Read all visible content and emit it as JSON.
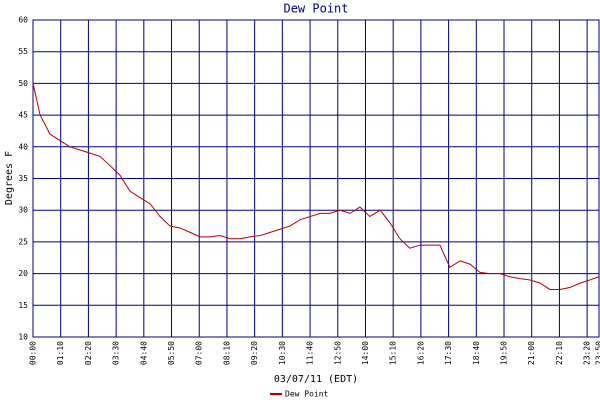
{
  "chart_data": {
    "type": "line",
    "title": "Dew Point",
    "x_label": "03/07/11 (EDT)",
    "y_label": "Degrees F",
    "xlim": [
      0,
      1430
    ],
    "ylim": [
      10,
      60
    ],
    "yticks": [
      10,
      15,
      20,
      25,
      30,
      35,
      40,
      45,
      50,
      55,
      60
    ],
    "xticks": [
      {
        "value": 0,
        "label": "00:00"
      },
      {
        "value": 70,
        "label": "01:10"
      },
      {
        "value": 140,
        "label": "02:20"
      },
      {
        "value": 210,
        "label": "03:30"
      },
      {
        "value": 280,
        "label": "04:40"
      },
      {
        "value": 350,
        "label": "05:50"
      },
      {
        "value": 420,
        "label": "07:00"
      },
      {
        "value": 490,
        "label": "08:10"
      },
      {
        "value": 560,
        "label": "09:20"
      },
      {
        "value": 630,
        "label": "10:30"
      },
      {
        "value": 700,
        "label": "11:40"
      },
      {
        "value": 770,
        "label": "12:50"
      },
      {
        "value": 840,
        "label": "14:00"
      },
      {
        "value": 910,
        "label": "15:10"
      },
      {
        "value": 980,
        "label": "16:20"
      },
      {
        "value": 1050,
        "label": "17:30"
      },
      {
        "value": 1120,
        "label": "18:40"
      },
      {
        "value": 1190,
        "label": "19:50"
      },
      {
        "value": 1260,
        "label": "21:00"
      },
      {
        "value": 1330,
        "label": "22:10"
      },
      {
        "value": 1400,
        "label": "23:20"
      },
      {
        "value": 1430,
        "label": "23:50"
      }
    ],
    "grid": true,
    "legend": "bottom",
    "series": [
      {
        "name": "Dew Point",
        "color": "#b00000",
        "x": [
          0,
          18,
          43,
          68,
          93,
          119,
          144,
          169,
          195,
          220,
          245,
          270,
          296,
          321,
          346,
          371,
          397,
          422,
          447,
          472,
          498,
          523,
          548,
          574,
          599,
          624,
          649,
          675,
          700,
          725,
          750,
          776,
          801,
          826,
          851,
          877,
          902,
          927,
          952,
          978,
          1003,
          1028,
          1053,
          1079,
          1104,
          1129,
          1154,
          1180,
          1205,
          1230,
          1255,
          1281,
          1306,
          1331,
          1356,
          1382,
          1407,
          1430
        ],
        "values": [
          50,
          45,
          42,
          41,
          40,
          39.5,
          39,
          38.5,
          37,
          35.5,
          33,
          32,
          31,
          29,
          27.5,
          27.2,
          26.5,
          25.8,
          25.8,
          26,
          25.5,
          25.5,
          25.8,
          26,
          26.5,
          27,
          27.5,
          28.5,
          29,
          29.5,
          29.5,
          30,
          29.5,
          30.5,
          29,
          30,
          28,
          25.5,
          24,
          24.5,
          24.5,
          24.5,
          21,
          22,
          21.5,
          20.2,
          20,
          20,
          19.5,
          19.2,
          19,
          18.5,
          17.5,
          17.5,
          17.8,
          18.5,
          19,
          19.5
        ]
      }
    ]
  }
}
